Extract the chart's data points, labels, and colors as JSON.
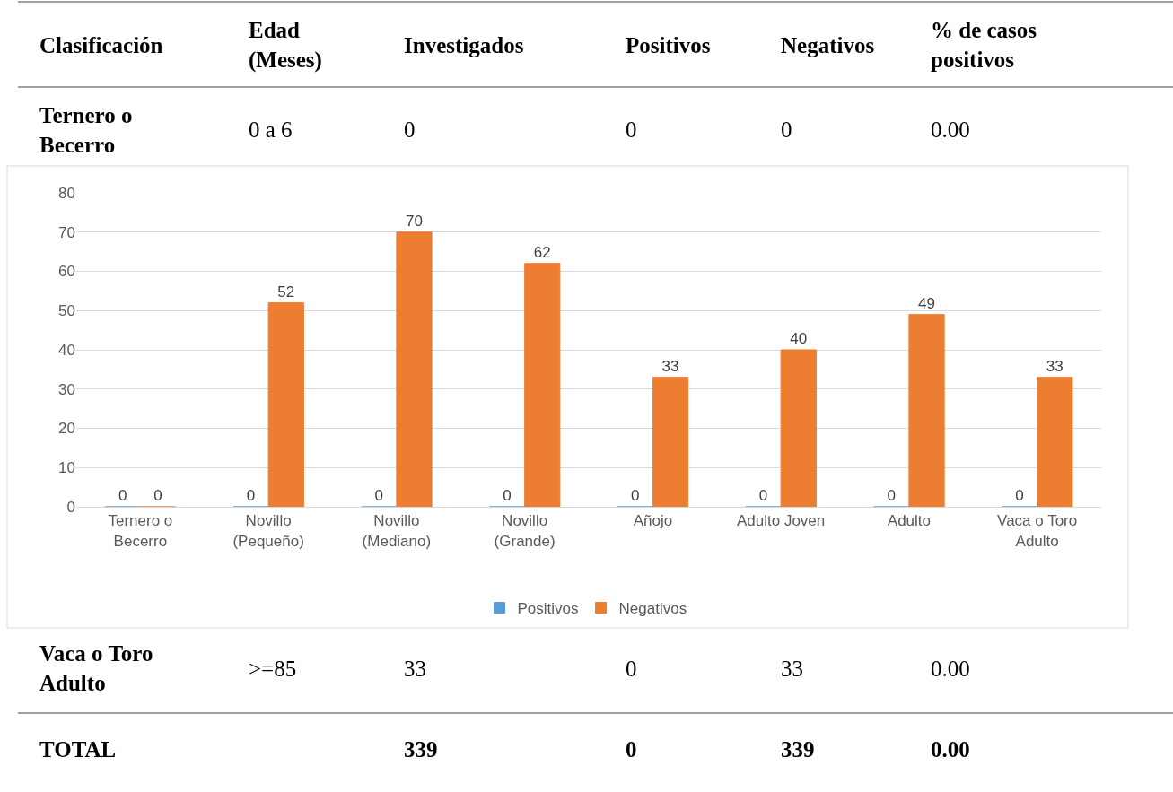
{
  "chart_data": [
    {
      "type": "other",
      "annotations": [
        "Clasificación",
        "Edad\n(Meses)",
        "Investigados",
        "Positivos",
        "Negativos",
        "% de casos\npositivos",
        "Ternero o\nBecerro",
        "0 a 6",
        "0",
        "0",
        "0",
        "0.00",
        "Vaca o Toro\nAdulto",
        ">=85",
        "33",
        "0",
        "33",
        "0.00",
        "TOTAL",
        "339",
        "0",
        "339",
        "0.00"
      ]
    },
    {
      "type": "bar",
      "categories": [
        "Ternero o\nBecerro",
        "Novillo\n(Pequeño)",
        "Novillo\n(Mediano)",
        "Novillo\n(Grande)",
        "Añojo",
        "Adulto Joven",
        "Adulto",
        "Vaca o Toro\nAdulto"
      ],
      "series": [
        {
          "name": "Positivos",
          "color": "#5b9bd5",
          "values": [
            0,
            0,
            0,
            0,
            0,
            0,
            0,
            0
          ]
        },
        {
          "name": "Negativos",
          "color": "#ed7d31",
          "values": [
            0,
            52,
            70,
            62,
            33,
            40,
            49,
            33
          ]
        }
      ],
      "ylim": [
        0,
        80
      ],
      "yticks": [
        0,
        10,
        20,
        30,
        40,
        50,
        60,
        70,
        80
      ],
      "grid": "y",
      "legend": "bottom",
      "data_labels": true
    }
  ]
}
